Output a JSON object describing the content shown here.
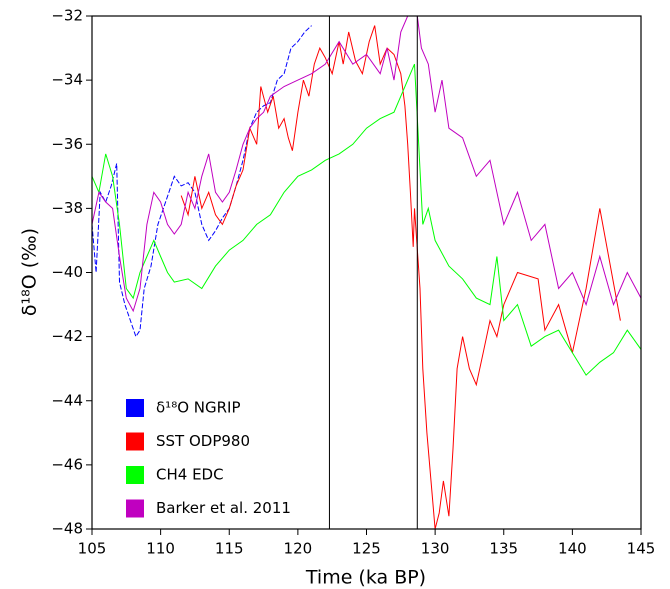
{
  "chart_data": {
    "type": "line",
    "xlabel": "Time (ka BP)",
    "ylabel": "δ¹⁸O (‰)",
    "xlim": [
      105,
      145
    ],
    "ylim": [
      -48,
      -32
    ],
    "xticks": [
      105,
      110,
      115,
      120,
      125,
      130,
      135,
      140,
      145
    ],
    "yticks": [
      {
        "value": -48,
        "label": "−48"
      },
      {
        "value": -46,
        "label": "−46"
      },
      {
        "value": -44,
        "label": "−44"
      },
      {
        "value": -42,
        "label": "−42"
      },
      {
        "value": -40,
        "label": "−40"
      },
      {
        "value": -38,
        "label": "−38"
      },
      {
        "value": -36,
        "label": "−36"
      },
      {
        "value": -34,
        "label": "−34"
      },
      {
        "value": -32,
        "label": "−32"
      }
    ],
    "vlines": [
      122.3,
      128.7
    ],
    "legend": "lower left",
    "series": [
      {
        "name": "δ¹⁸O NGRIP",
        "color": "#0000ff",
        "dashed": true,
        "x": [
          105.0,
          105.3,
          105.6,
          106.0,
          106.4,
          106.8,
          107.0,
          107.4,
          107.8,
          108.2,
          108.5,
          108.8,
          109.3,
          109.8,
          110.2,
          110.6,
          111.0,
          111.5,
          112.0,
          112.5,
          113.0,
          113.5,
          114.0,
          114.5,
          115.0,
          115.5,
          116.0,
          116.5,
          117.0,
          117.5,
          118.0,
          118.5,
          119.0,
          119.5,
          120.0,
          120.5,
          121.0
        ],
        "values": [
          -38.5,
          -40.0,
          -37.5,
          -37.8,
          -37.3,
          -36.6,
          -40.3,
          -41.0,
          -41.5,
          -42.0,
          -41.8,
          -40.5,
          -39.8,
          -38.5,
          -38.0,
          -37.5,
          -37.0,
          -37.3,
          -37.2,
          -37.5,
          -38.5,
          -39.0,
          -38.7,
          -38.3,
          -38.0,
          -37.3,
          -36.5,
          -35.5,
          -35.0,
          -34.8,
          -34.7,
          -34.0,
          -33.8,
          -33.0,
          -32.8,
          -32.5,
          -32.3
        ]
      },
      {
        "name": "SST ODP980",
        "color": "#ff0000",
        "dashed": false,
        "x": [
          111.5,
          112.0,
          112.5,
          113.0,
          113.5,
          114.0,
          114.5,
          115.0,
          115.5,
          116.0,
          116.5,
          117.0,
          117.3,
          117.8,
          118.2,
          118.6,
          119.0,
          119.3,
          119.6,
          120.0,
          120.4,
          120.8,
          121.2,
          121.6,
          122.0,
          122.5,
          123.0,
          123.3,
          123.7,
          124.2,
          124.7,
          125.2,
          125.6,
          126.0,
          126.5,
          127.0,
          127.5,
          127.8,
          128.0,
          128.2,
          128.4,
          128.5,
          128.9,
          129.1,
          129.4,
          129.7,
          130.0,
          130.3,
          130.6,
          131.0,
          131.3,
          131.6,
          132.0,
          132.5,
          133.0,
          133.5,
          134.0,
          134.5,
          135.0,
          136.0,
          137.5,
          138.0,
          139.0,
          140.0,
          141.0,
          142.0,
          143.5
        ],
        "values": [
          -37.6,
          -38.2,
          -37.0,
          -38.0,
          -37.5,
          -38.2,
          -38.5,
          -38.0,
          -37.3,
          -36.8,
          -35.5,
          -36.0,
          -34.2,
          -35.0,
          -34.5,
          -35.5,
          -35.2,
          -35.8,
          -36.2,
          -35.0,
          -34.0,
          -34.5,
          -33.5,
          -33.0,
          -33.3,
          -33.8,
          -32.8,
          -33.5,
          -32.5,
          -33.4,
          -33.8,
          -32.8,
          -32.3,
          -33.5,
          -33.0,
          -33.2,
          -33.8,
          -34.8,
          -36.0,
          -37.5,
          -39.2,
          -38.0,
          -40.5,
          -43.0,
          -45.0,
          -46.5,
          -48.0,
          -47.5,
          -46.5,
          -47.6,
          -45.5,
          -43.0,
          -42.0,
          -43.0,
          -43.5,
          -42.5,
          -41.5,
          -42.0,
          -41.0,
          -40.0,
          -40.2,
          -41.8,
          -41.0,
          -42.5,
          -40.5,
          -38.0,
          -41.5
        ]
      },
      {
        "name": "CH4 EDC",
        "color": "#00ff00",
        "dashed": false,
        "x": [
          105.0,
          105.5,
          106.0,
          106.5,
          107.0,
          107.5,
          108.0,
          108.5,
          109.0,
          109.5,
          110.0,
          110.5,
          111.0,
          112.0,
          113.0,
          114.0,
          115.0,
          116.0,
          117.0,
          118.0,
          119.0,
          120.0,
          121.0,
          122.0,
          123.0,
          124.0,
          125.0,
          126.0,
          127.0,
          128.0,
          128.5,
          128.8,
          129.1,
          129.5,
          130.0,
          131.0,
          132.0,
          133.0,
          134.0,
          134.5,
          135.0,
          136.0,
          137.0,
          138.0,
          139.0,
          140.0,
          141.0,
          142.0,
          143.0,
          144.0,
          145.0
        ],
        "values": [
          -37.0,
          -37.5,
          -36.3,
          -37.0,
          -38.5,
          -40.5,
          -40.8,
          -40.0,
          -39.5,
          -39.0,
          -39.5,
          -40.0,
          -40.3,
          -40.2,
          -40.5,
          -39.8,
          -39.3,
          -39.0,
          -38.5,
          -38.2,
          -37.5,
          -37.0,
          -36.8,
          -36.5,
          -36.3,
          -36.0,
          -35.5,
          -35.2,
          -35.0,
          -34.0,
          -33.5,
          -36.0,
          -38.5,
          -38.0,
          -39.0,
          -39.8,
          -40.2,
          -40.8,
          -41.0,
          -39.5,
          -41.5,
          -41.0,
          -42.3,
          -42.0,
          -41.8,
          -42.5,
          -43.2,
          -42.8,
          -42.5,
          -41.8,
          -42.4
        ]
      },
      {
        "name": "Barker et al. 2011",
        "color": "#c000c0",
        "dashed": false,
        "x": [
          105.0,
          105.5,
          106.0,
          106.5,
          107.0,
          107.5,
          108.0,
          108.5,
          109.0,
          109.5,
          110.0,
          110.5,
          111.0,
          111.5,
          112.0,
          112.5,
          113.0,
          113.5,
          114.0,
          114.5,
          115.0,
          115.5,
          116.0,
          116.5,
          117.0,
          117.5,
          118.0,
          119.0,
          120.0,
          121.0,
          122.0,
          123.0,
          124.0,
          125.0,
          126.0,
          126.5,
          127.0,
          127.5,
          128.0,
          128.7,
          129.0,
          129.5,
          130.0,
          130.5,
          131.0,
          132.0,
          133.0,
          134.0,
          135.0,
          136.0,
          137.0,
          138.0,
          139.0,
          140.0,
          141.0,
          142.0,
          143.0,
          144.0,
          145.0
        ],
        "values": [
          -38.5,
          -37.5,
          -37.8,
          -38.0,
          -39.5,
          -40.8,
          -41.2,
          -40.5,
          -38.5,
          -37.5,
          -37.8,
          -38.5,
          -38.8,
          -38.5,
          -37.5,
          -38.0,
          -37.0,
          -36.3,
          -37.5,
          -37.8,
          -37.5,
          -36.8,
          -36.0,
          -35.5,
          -35.2,
          -35.0,
          -34.5,
          -34.2,
          -34.0,
          -33.8,
          -33.5,
          -32.8,
          -33.5,
          -33.2,
          -33.8,
          -33.0,
          -34.0,
          -32.5,
          -32.0,
          -32.0,
          -33.0,
          -33.5,
          -35.0,
          -34.0,
          -35.5,
          -35.8,
          -37.0,
          -36.5,
          -38.5,
          -37.5,
          -39.0,
          -38.5,
          -40.5,
          -40.0,
          -41.0,
          -39.5,
          -41.0,
          -40.0,
          -40.8
        ]
      }
    ]
  }
}
